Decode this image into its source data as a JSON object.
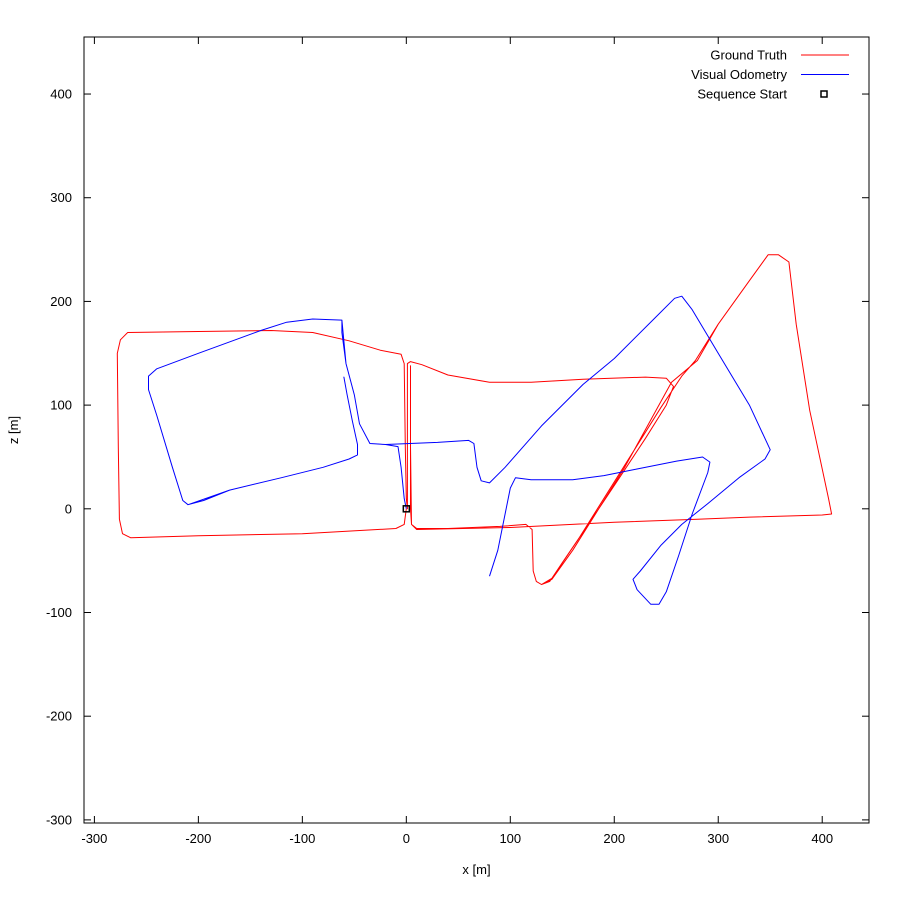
{
  "chart_data": {
    "type": "line",
    "title": "",
    "xlabel": "x [m]",
    "ylabel": "z [m]",
    "xlim": [
      -310,
      445
    ],
    "ylim": [
      -303,
      455
    ],
    "xticks": [
      -300,
      -200,
      -100,
      0,
      100,
      200,
      300,
      400
    ],
    "yticks": [
      -300,
      -200,
      -100,
      0,
      100,
      200,
      300,
      400
    ],
    "grid": false,
    "legend_position": "top-right",
    "series": [
      {
        "name": "Ground Truth",
        "color": "#ff0000",
        "points": [
          [
            0,
            0
          ],
          [
            -2,
            -15
          ],
          [
            -10,
            -19
          ],
          [
            -100,
            -24
          ],
          [
            -200,
            -26
          ],
          [
            -265,
            -28
          ],
          [
            -273,
            -24
          ],
          [
            -276,
            -10
          ],
          [
            -277,
            60
          ],
          [
            -278,
            150
          ],
          [
            -275,
            163
          ],
          [
            -268,
            170
          ],
          [
            -200,
            171
          ],
          [
            -130,
            172
          ],
          [
            -90,
            170
          ],
          [
            -55,
            162
          ],
          [
            -25,
            153
          ],
          [
            -5,
            149
          ],
          [
            -2,
            140
          ],
          [
            -1,
            60
          ],
          [
            0,
            10
          ],
          [
            1,
            0
          ],
          [
            1,
            60
          ],
          [
            1,
            140
          ],
          [
            4,
            142
          ],
          [
            15,
            139
          ],
          [
            40,
            129
          ],
          [
            80,
            122
          ],
          [
            120,
            122
          ],
          [
            170,
            125
          ],
          [
            230,
            127
          ],
          [
            250,
            126
          ],
          [
            257,
            118
          ],
          [
            250,
            100
          ],
          [
            230,
            68
          ],
          [
            205,
            30
          ],
          [
            175,
            -15
          ],
          [
            150,
            -52
          ],
          [
            138,
            -70
          ],
          [
            130,
            -73
          ],
          [
            125,
            -70
          ],
          [
            122,
            -60
          ],
          [
            121,
            -20
          ],
          [
            115,
            -15
          ],
          [
            90,
            -17
          ],
          [
            40,
            -19
          ],
          [
            10,
            -19
          ],
          [
            5,
            -15
          ],
          [
            4,
            0
          ],
          [
            4,
            60
          ],
          [
            4,
            138
          ],
          [
            4,
            60
          ],
          [
            5,
            -15
          ],
          [
            10,
            -20
          ],
          [
            100,
            -18
          ],
          [
            200,
            -13
          ],
          [
            280,
            -10
          ],
          [
            330,
            -8
          ],
          [
            400,
            -6
          ],
          [
            409,
            -5
          ],
          [
            406,
            10
          ],
          [
            388,
            95
          ],
          [
            375,
            178
          ],
          [
            368,
            238
          ],
          [
            358,
            245
          ],
          [
            348,
            245
          ],
          [
            330,
            220
          ],
          [
            300,
            178
          ],
          [
            280,
            143
          ],
          [
            255,
            122
          ],
          [
            232,
            80
          ],
          [
            210,
            40
          ],
          [
            185,
            0
          ],
          [
            160,
            -40
          ],
          [
            140,
            -68
          ],
          [
            130,
            -73
          ],
          [
            140,
            -67
          ],
          [
            165,
            -30
          ],
          [
            190,
            10
          ],
          [
            220,
            58
          ],
          [
            245,
            98
          ],
          [
            265,
            128
          ],
          [
            278,
            143
          ],
          [
            300,
            178
          ],
          [
            330,
            220
          ],
          [
            348,
            245
          ]
        ]
      },
      {
        "name": "Visual Odometry",
        "color": "#0000ff",
        "points": [
          [
            0,
            0
          ],
          [
            -2,
            10
          ],
          [
            -5,
            40
          ],
          [
            -8,
            60
          ],
          [
            -20,
            62
          ],
          [
            -35,
            63
          ],
          [
            -45,
            82
          ],
          [
            -50,
            110
          ],
          [
            -58,
            140
          ],
          [
            -62,
            170
          ],
          [
            -62,
            182
          ],
          [
            -90,
            183
          ],
          [
            -115,
            180
          ],
          [
            -140,
            172
          ],
          [
            -200,
            150
          ],
          [
            -240,
            135
          ],
          [
            -248,
            128
          ],
          [
            -248,
            115
          ],
          [
            -240,
            90
          ],
          [
            -225,
            40
          ],
          [
            -215,
            8
          ],
          [
            -210,
            4
          ],
          [
            -195,
            8
          ],
          [
            -170,
            18
          ],
          [
            -120,
            30
          ],
          [
            -80,
            40
          ],
          [
            -55,
            48
          ],
          [
            -47,
            52
          ],
          [
            -47,
            62
          ],
          [
            -52,
            85
          ],
          [
            -57,
            110
          ],
          [
            -60,
            127
          ],
          [
            -57,
            110
          ],
          [
            -52,
            85
          ],
          [
            -47,
            62
          ],
          [
            -47,
            52
          ],
          [
            -55,
            48
          ],
          [
            -80,
            40
          ],
          [
            -120,
            30
          ],
          [
            -170,
            18
          ],
          [
            -210,
            4
          ],
          [
            -215,
            8
          ],
          [
            -225,
            40
          ],
          [
            -240,
            90
          ],
          [
            -248,
            115
          ],
          [
            -248,
            128
          ],
          [
            -240,
            135
          ],
          [
            -200,
            150
          ],
          [
            -140,
            172
          ],
          [
            -115,
            180
          ],
          [
            -90,
            183
          ],
          [
            -62,
            182
          ],
          [
            -58,
            140
          ],
          [
            -50,
            110
          ],
          [
            -45,
            82
          ],
          [
            -35,
            63
          ],
          [
            -20,
            62
          ],
          [
            30,
            64
          ],
          [
            60,
            66
          ],
          [
            65,
            63
          ],
          [
            68,
            40
          ],
          [
            72,
            27
          ],
          [
            80,
            25
          ],
          [
            95,
            40
          ],
          [
            130,
            80
          ],
          [
            170,
            120
          ],
          [
            200,
            145
          ],
          [
            240,
            185
          ],
          [
            258,
            203
          ],
          [
            265,
            205
          ],
          [
            275,
            192
          ],
          [
            300,
            150
          ],
          [
            330,
            100
          ],
          [
            350,
            57
          ],
          [
            345,
            48
          ],
          [
            320,
            30
          ],
          [
            290,
            5
          ],
          [
            265,
            -15
          ],
          [
            245,
            -35
          ],
          [
            225,
            -60
          ],
          [
            218,
            -68
          ],
          [
            222,
            -78
          ],
          [
            235,
            -92
          ],
          [
            243,
            -92
          ],
          [
            250,
            -80
          ],
          [
            262,
            -45
          ],
          [
            275,
            -5
          ],
          [
            290,
            35
          ],
          [
            292,
            45
          ],
          [
            285,
            50
          ],
          [
            260,
            46
          ],
          [
            220,
            38
          ],
          [
            190,
            32
          ],
          [
            160,
            28
          ],
          [
            120,
            28
          ],
          [
            105,
            30
          ],
          [
            100,
            20
          ],
          [
            95,
            -5
          ],
          [
            88,
            -40
          ],
          [
            80,
            -65
          ]
        ]
      },
      {
        "name": "Sequence Start",
        "color": "#000000",
        "marker": "square",
        "points": [
          [
            0,
            0
          ]
        ]
      }
    ]
  }
}
